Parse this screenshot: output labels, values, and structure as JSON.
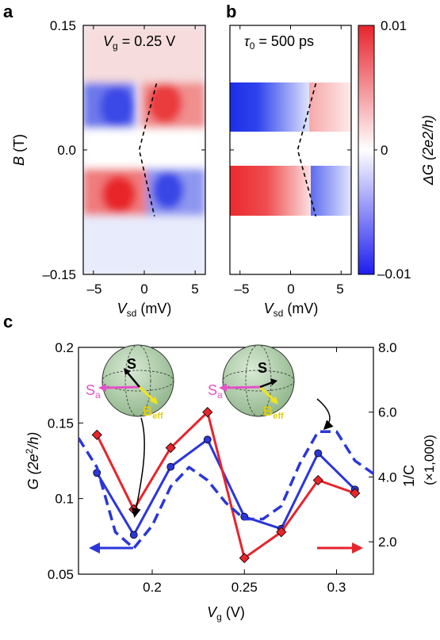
{
  "panel_labels": {
    "a": "a",
    "b": "b",
    "c": "c"
  },
  "colors": {
    "red": "#e8242c",
    "blue": "#2b36d9",
    "sphere": "#b9d3b3",
    "pink": "#e551c8",
    "yellow": "#f2e21a"
  },
  "top": {
    "ylabel": "B (T)",
    "xlabel": "V_sd (mV)",
    "yticks": [
      "0.15",
      "0.0",
      "–0.15"
    ],
    "xticks_a": [
      "–5",
      "0",
      "5"
    ],
    "xticks_b": [
      "–5",
      "0",
      "5"
    ],
    "annot_a": "V_g = 0.25 V",
    "annot_b": "τ_0 = 500 ps",
    "colorbar_label": "ΔG (2e2/h)",
    "colorbar_ticks": [
      "0.01",
      "0",
      "–0.01"
    ]
  },
  "chart_data": [
    {
      "panel": "a",
      "type": "heatmap",
      "title": "",
      "annotation": "V_g = 0.25 V",
      "xlabel": "V_sd (mV)",
      "ylabel": "B (T)",
      "xlim": [
        -6,
        6
      ],
      "ylim": [
        -0.15,
        0.15
      ],
      "xticks": [
        -5,
        0,
        5
      ],
      "yticks": [
        0.15,
        0.0,
        -0.15
      ],
      "color_label": "ΔG (2e2/h)",
      "color_range": [
        -0.01,
        0.01
      ],
      "dashed_line": {
        "x": [
          1.2,
          -0.5,
          1.0
        ],
        "y": [
          0.08,
          0.0,
          -0.08
        ]
      }
    },
    {
      "panel": "b",
      "type": "heatmap",
      "title": "",
      "annotation": "τ_0 = 500 ps",
      "xlabel": "V_sd (mV)",
      "ylabel": "",
      "xlim": [
        -6,
        6
      ],
      "ylim": [
        -0.15,
        0.15
      ],
      "xticks": [
        -5,
        0,
        5
      ],
      "color_label": "ΔG (2e2/h)",
      "color_range": [
        -0.01,
        0.01
      ],
      "dashed_line": {
        "x": [
          2.5,
          0.7,
          2.5
        ],
        "y": [
          0.08,
          0.0,
          -0.08
        ]
      }
    },
    {
      "panel": "c",
      "type": "line",
      "title": "",
      "xlabel": "V_g (V)",
      "ylabel": "G (2e^2/h)",
      "ylabel_right": "1/C",
      "ylabel_right_scale": "(×1,000)",
      "xlim": [
        0.16,
        0.32
      ],
      "ylim": [
        0.05,
        0.2
      ],
      "ylim_right": [
        1.0,
        8.0
      ],
      "xticks": [
        0.2,
        0.25,
        0.3
      ],
      "yticks": [
        0.05,
        0.1,
        0.15,
        0.2
      ],
      "yticks_right": [
        2.0,
        4.0,
        6.0,
        8.0
      ],
      "grid": false,
      "series": [
        {
          "axis": "left",
          "color": "blue",
          "marker": "circle",
          "x": [
            0.17,
            0.19,
            0.21,
            0.23,
            0.25,
            0.27,
            0.29,
            0.31
          ],
          "y": [
            0.117,
            0.076,
            0.121,
            0.139,
            0.088,
            0.08,
            0.13,
            0.106
          ]
        },
        {
          "axis": "right",
          "color": "red",
          "marker": "diamond",
          "x": [
            0.17,
            0.19,
            0.21,
            0.23,
            0.25,
            0.27,
            0.29,
            0.31
          ],
          "y": [
            5.3,
            3.0,
            4.9,
            6.0,
            1.5,
            2.3,
            3.9,
            3.5
          ]
        },
        {
          "axis": "right",
          "style": "dashed",
          "color": "blue",
          "x": [
            0.16,
            0.17,
            0.18,
            0.19,
            0.2,
            0.21,
            0.22,
            0.23,
            0.24,
            0.25,
            0.26,
            0.27,
            0.28,
            0.29,
            0.3,
            0.31,
            0.32
          ],
          "y": [
            5.2,
            4.3,
            2.3,
            1.8,
            2.5,
            3.7,
            4.3,
            3.9,
            3.2,
            2.7,
            2.7,
            3.1,
            4.4,
            5.4,
            5.4,
            4.5,
            4.1
          ]
        }
      ]
    }
  ],
  "inset": {
    "s_label": "S",
    "sa_label": "S",
    "sa_sub": "a",
    "beff_label": "B",
    "beff_sub": "eff"
  },
  "chart_c_labels": {
    "xlabel_main": "V",
    "xlabel_sub": "g",
    "xlabel_tail": " (V)",
    "ylabel_left_pre": "G (2e",
    "ylabel_left_sup": "2",
    "ylabel_left_post": "/h)",
    "ylabel_right": "1/C",
    "ylabel_right_scale": "(×1,000)",
    "xticks": [
      "0.2",
      "0.25",
      "0.3"
    ],
    "yticks": [
      "0.05",
      "0.1",
      "0.15",
      "0.2"
    ],
    "yticks_right": [
      "2.0",
      "4.0",
      "6.0",
      "8.0"
    ]
  }
}
